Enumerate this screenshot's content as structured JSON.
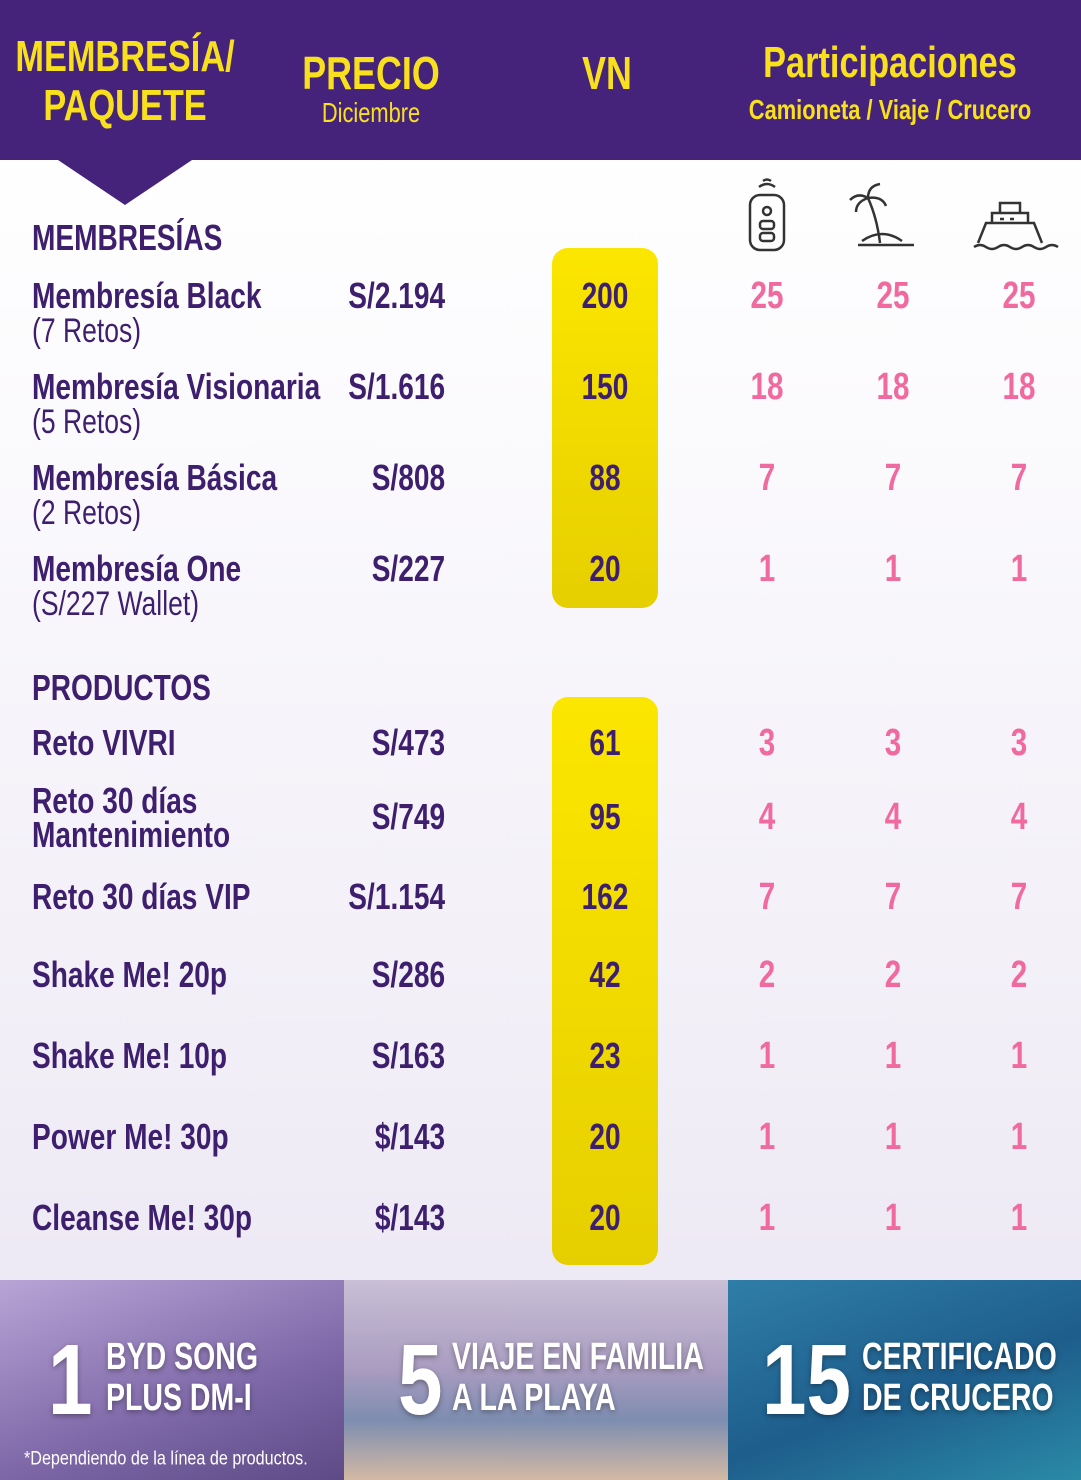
{
  "header": {
    "package": [
      "MEMBRESÍA/",
      "PAQUETE"
    ],
    "price": "PRECIO",
    "price_sub": "Diciembre",
    "vn": "VN",
    "participations": "Participaciones",
    "participations_sub": "Camioneta / Viaje / Crucero"
  },
  "sections": [
    {
      "title": "MEMBRESÍAS",
      "rows": [
        {
          "name": [
            "Membresía Black"
          ],
          "sub": "(7 Retos)",
          "price": "S/2.194",
          "vn": 200,
          "entries": [
            25,
            25,
            25
          ]
        },
        {
          "name": [
            "Membresía Visionaria"
          ],
          "sub": "(5 Retos)",
          "price": "S/1.616",
          "vn": 150,
          "entries": [
            18,
            18,
            18
          ]
        },
        {
          "name": [
            "Membresía Básica"
          ],
          "sub": "(2 Retos)",
          "price": "S/808",
          "vn": 88,
          "entries": [
            7,
            7,
            7
          ]
        },
        {
          "name": [
            "Membresía One"
          ],
          "sub": "(S/227 Wallet)",
          "price": "S/227",
          "vn": 20,
          "entries": [
            1,
            1,
            1
          ]
        }
      ]
    },
    {
      "title": "PRODUCTOS",
      "rows": [
        {
          "name": [
            "Reto VIVRI"
          ],
          "price": "S/473",
          "vn": 61,
          "entries": [
            3,
            3,
            3
          ]
        },
        {
          "name": [
            "Reto 30 días",
            "Mantenimiento"
          ],
          "price": "S/749",
          "vn": 95,
          "entries": [
            4,
            4,
            4
          ]
        },
        {
          "name": [
            "Reto 30 días VIP"
          ],
          "price": "S/1.154",
          "vn": 162,
          "entries": [
            7,
            7,
            7
          ]
        },
        {
          "name": [
            "Shake Me! 20p"
          ],
          "price": "S/286",
          "vn": 42,
          "entries": [
            2,
            2,
            2
          ]
        },
        {
          "name": [
            "Shake Me! 10p"
          ],
          "price": "S/163",
          "vn": 23,
          "entries": [
            1,
            1,
            1
          ]
        },
        {
          "name": [
            "Power Me! 30p"
          ],
          "price": "$/143",
          "vn": 20,
          "entries": [
            1,
            1,
            1
          ]
        },
        {
          "name": [
            "Cleanse Me! 30p"
          ],
          "price": "$/143",
          "vn": 20,
          "entries": [
            1,
            1,
            1
          ]
        }
      ]
    }
  ],
  "prizes": [
    {
      "number": 1,
      "label": [
        "BYD SONG",
        "PLUS DM-I"
      ]
    },
    {
      "number": 5,
      "label": [
        "VIAJE EN FAMILIA",
        "A LA PLAYA"
      ]
    },
    {
      "number": 15,
      "label": [
        "CERTIFICADO",
        "DE CRUCERO"
      ]
    }
  ],
  "note": "*Dependiendo de la línea de productos."
}
